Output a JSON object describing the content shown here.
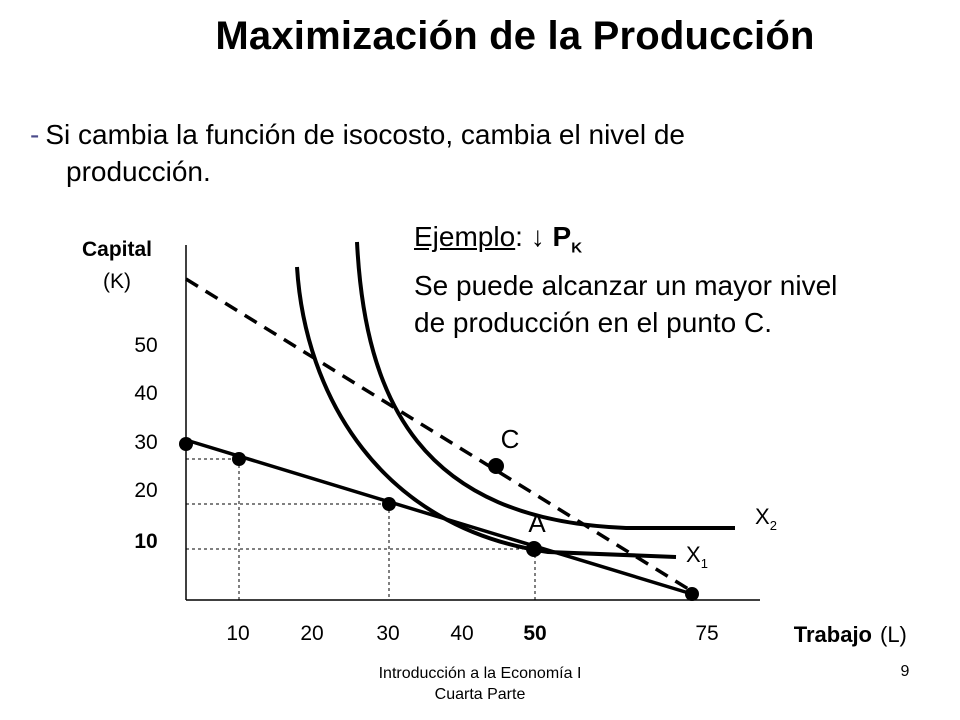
{
  "slide": {
    "title": "Maximización de la Producción",
    "bullet_dash": "-",
    "bullet_line1": "Si cambia la función de isocosto, cambia el nivel de",
    "bullet_line2": "producción.",
    "example_word": "Ejemplo",
    "example_colon": ":",
    "example_arrow": "↓",
    "example_p": "P",
    "example_k": "K",
    "example_line2": "Se puede alcanzar un mayor nivel",
    "example_line3": "de producción en el punto C."
  },
  "chart_data": {
    "type": "line",
    "ylabel": "Capital",
    "ylabel_unit": "(K)",
    "xlabel": "Trabajo",
    "xlabel_unit": "(L)",
    "x_ticks": [
      "10",
      "20",
      "30",
      "40",
      "50",
      "75"
    ],
    "y_ticks": [
      "50",
      "40",
      "30",
      "20",
      "10"
    ],
    "bold_x_tick": "50",
    "bold_y_tick": "10",
    "series": [
      {
        "kind": "isocost-original",
        "style": "solid",
        "points": [
          {
            "x": 0,
            "y": 32
          },
          {
            "x": 75,
            "y": 0
          }
        ]
      },
      {
        "kind": "isocost-new",
        "style": "dashed",
        "points": [
          {
            "x": 0,
            "y": 65
          },
          {
            "x": 75,
            "y": 0
          }
        ]
      }
    ],
    "isoquants": [
      {
        "name": "X",
        "sub": "1"
      },
      {
        "name": "X",
        "sub": "2"
      }
    ],
    "points": [
      {
        "label": "",
        "x": 0,
        "y": 32
      },
      {
        "label": "",
        "x": 7,
        "y": 29
      },
      {
        "label": "",
        "x": 30,
        "y": 19
      },
      {
        "label": "A",
        "x": 51,
        "y": 9
      },
      {
        "label": "C",
        "x": 46,
        "y": 26
      },
      {
        "label": "",
        "x": 75,
        "y": 0
      }
    ]
  },
  "footer": {
    "course_line1": "Introducción a la Economía I",
    "course_line2": "Cuarta Parte",
    "page_number": "9"
  }
}
